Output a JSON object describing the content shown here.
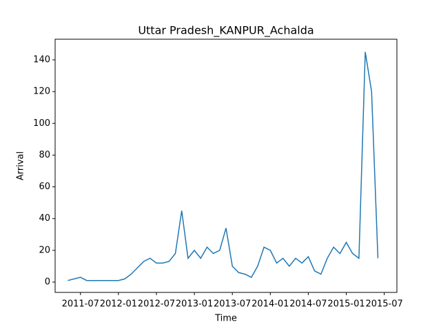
{
  "chart_data": {
    "type": "line",
    "title": "Uttar Pradesh_KANPUR_Achalda",
    "xlabel": "Time",
    "ylabel": "Arrival",
    "x": [
      "2011-05",
      "2011-06",
      "2011-07",
      "2011-08",
      "2011-09",
      "2011-10",
      "2011-11",
      "2011-12",
      "2012-01",
      "2012-02",
      "2012-03",
      "2012-04",
      "2012-05",
      "2012-06",
      "2012-07",
      "2012-08",
      "2012-09",
      "2012-10",
      "2012-11",
      "2012-12",
      "2013-01",
      "2013-02",
      "2013-03",
      "2013-04",
      "2013-05",
      "2013-06",
      "2013-07",
      "2013-08",
      "2013-09",
      "2013-10",
      "2013-11",
      "2013-12",
      "2014-01",
      "2014-02",
      "2014-03",
      "2014-04",
      "2014-05",
      "2014-06",
      "2014-07",
      "2014-08",
      "2014-09",
      "2014-10",
      "2014-11",
      "2014-12",
      "2015-01",
      "2015-02",
      "2015-03",
      "2015-04",
      "2015-05",
      "2015-06"
    ],
    "series": [
      {
        "name": "Arrival",
        "color": "#1f77b4",
        "values": [
          1,
          2,
          3,
          1,
          1,
          1,
          1,
          1,
          1,
          2,
          5,
          9,
          13,
          15,
          12,
          12,
          13,
          18,
          45,
          15,
          20,
          15,
          22,
          18,
          20,
          34,
          10,
          6,
          5,
          3,
          10,
          22,
          20,
          12,
          15,
          10,
          15,
          12,
          16,
          7,
          5,
          15,
          22,
          18,
          25,
          18,
          15,
          145,
          120,
          15
        ]
      }
    ],
    "xlim": [
      "2011-03",
      "2015-09"
    ],
    "xticks": [
      "2011-07",
      "2012-01",
      "2012-07",
      "2013-01",
      "2013-07",
      "2014-01",
      "2014-07",
      "2015-01",
      "2015-07"
    ],
    "ylim": [
      -6.5,
      153
    ],
    "yticks": [
      0,
      20,
      40,
      60,
      80,
      100,
      120,
      140
    ]
  }
}
